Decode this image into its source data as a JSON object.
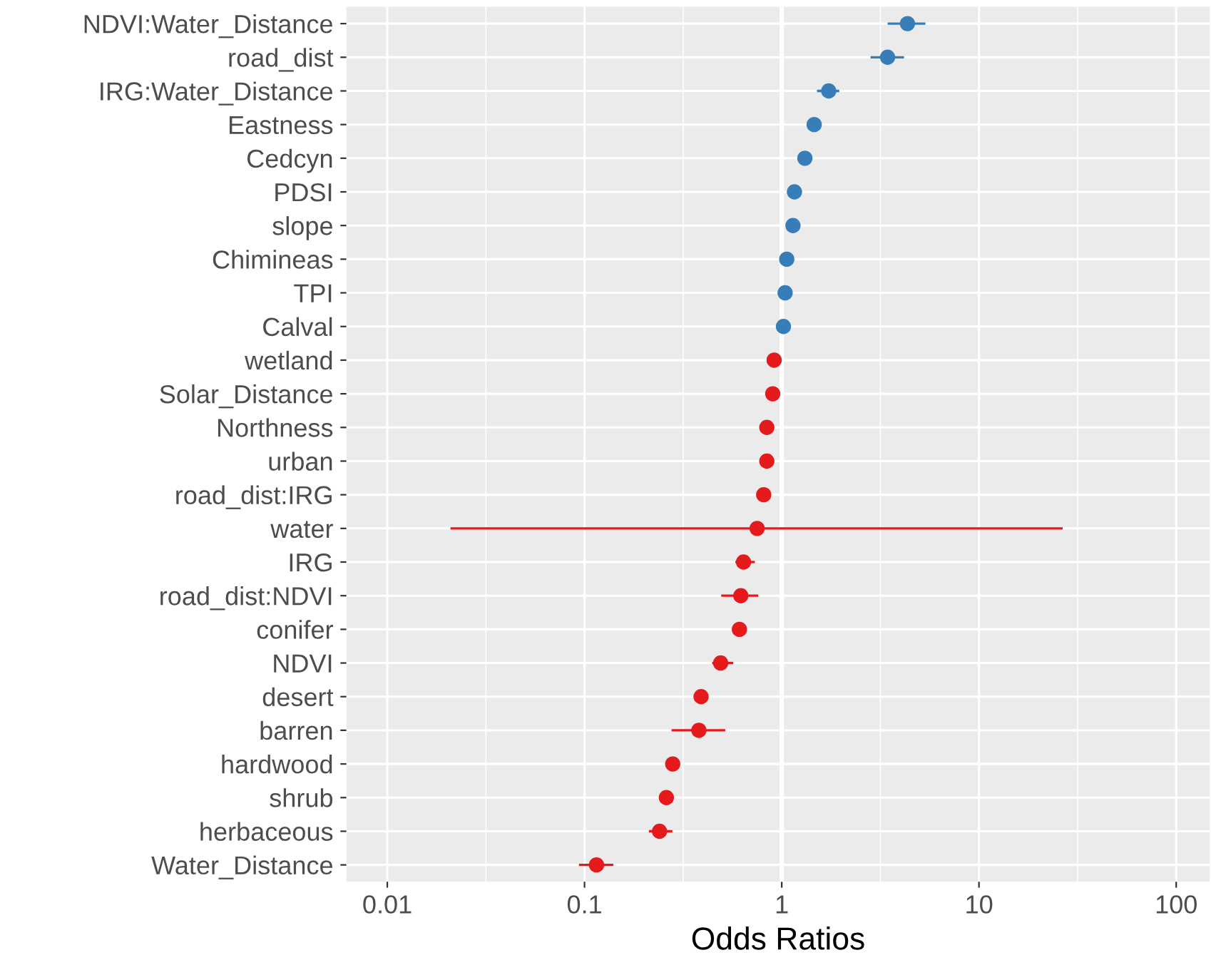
{
  "chart_data": {
    "type": "scatter",
    "orientation": "horizontal",
    "xlabel": "Odds Ratios",
    "log": "x",
    "categories": [
      "NDVI:Water_Distance",
      "road_dist",
      "IRG:Water_Distance",
      "Eastness",
      "Cedcyn",
      "PDSI",
      "slope",
      "Chimineas",
      "TPI",
      "Calval",
      "wetland",
      "Solar_Distance",
      "Northness",
      "urban",
      "road_dist:IRG",
      "water",
      "IRG",
      "road_dist:NDVI",
      "conifer",
      "NDVI",
      "desert",
      "barren",
      "hardwood",
      "shrub",
      "herbaceous",
      "Water_Distance"
    ],
    "series": [
      {
        "color": "#377eb8",
        "values": [
          4.34,
          3.44,
          1.73,
          1.46,
          1.31,
          1.16,
          1.14,
          1.06,
          1.04,
          1.02,
          null,
          null,
          null,
          null,
          null,
          null,
          null,
          null,
          null,
          null,
          null,
          null,
          null,
          null,
          null,
          null
        ],
        "errors": [
          [
            3.49,
            5.28
          ],
          [
            2.86,
            4.11
          ],
          [
            1.53,
            1.93
          ],
          null,
          null,
          null,
          null,
          null,
          null,
          null,
          null,
          null,
          null,
          null,
          null,
          null,
          null,
          null,
          null,
          null,
          null,
          null,
          null,
          null,
          null,
          null
        ]
      },
      {
        "color": "#e41a1c",
        "values": [
          null,
          null,
          null,
          null,
          null,
          null,
          null,
          null,
          null,
          null,
          0.915,
          0.9,
          0.84,
          0.84,
          0.81,
          0.75,
          0.64,
          0.62,
          0.61,
          0.49,
          0.39,
          0.38,
          0.28,
          0.26,
          0.24,
          0.115
        ],
        "errors": [
          null,
          null,
          null,
          null,
          null,
          null,
          null,
          null,
          null,
          null,
          null,
          null,
          null,
          null,
          null,
          [
            0.0212,
            26.2
          ],
          [
            0.59,
            0.72
          ],
          [
            0.5,
            0.75
          ],
          null,
          [
            0.45,
            0.56
          ],
          null,
          [
            0.28,
            0.51
          ],
          null,
          null,
          [
            0.215,
            0.275
          ],
          [
            0.095,
            0.138
          ]
        ]
      }
    ],
    "xlim": [
      0.0062,
      148
    ],
    "xticks": [
      0.01,
      0.1,
      1,
      10,
      100
    ],
    "grid": true,
    "marker": "circle",
    "ref_lines": [
      {
        "axis": "x",
        "value": 1,
        "color": "#ffffff"
      }
    ]
  }
}
